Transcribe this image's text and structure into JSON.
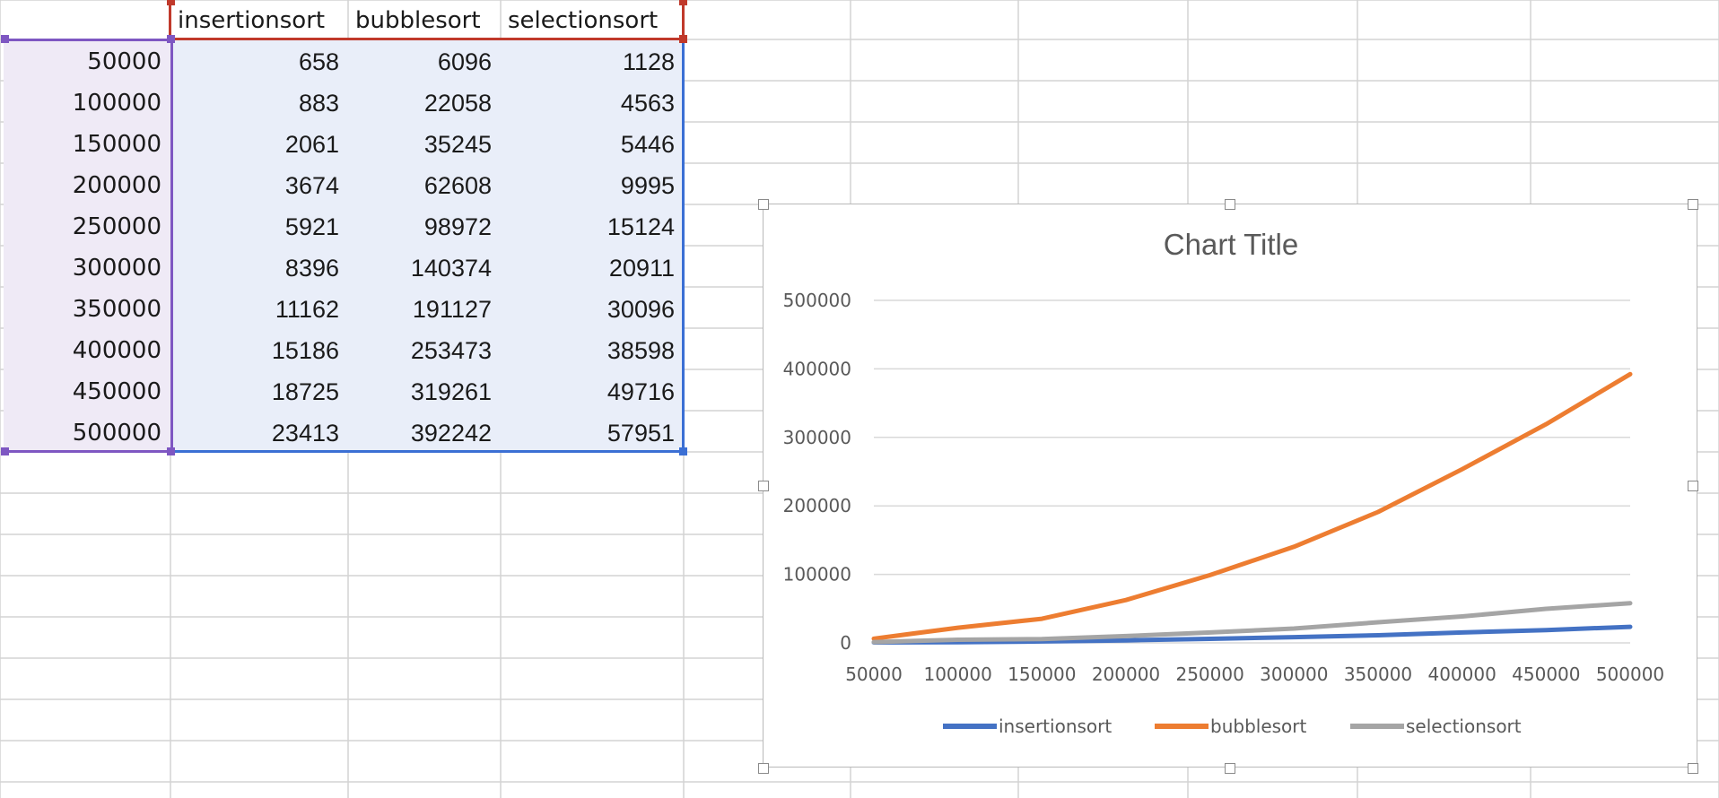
{
  "sheet": {
    "headers": [
      "insertionsort",
      "bubblesort",
      "selectionsort"
    ],
    "rows": [
      {
        "n": "50000",
        "cells": [
          "658",
          "6096",
          "1128"
        ]
      },
      {
        "n": "100000",
        "cells": [
          "883",
          "22058",
          "4563"
        ]
      },
      {
        "n": "150000",
        "cells": [
          "2061",
          "35245",
          "5446"
        ]
      },
      {
        "n": "200000",
        "cells": [
          "3674",
          "62608",
          "9995"
        ]
      },
      {
        "n": "250000",
        "cells": [
          "5921",
          "98972",
          "15124"
        ]
      },
      {
        "n": "300000",
        "cells": [
          "8396",
          "140374",
          "20911"
        ]
      },
      {
        "n": "350000",
        "cells": [
          "11162",
          "191127",
          "30096"
        ]
      },
      {
        "n": "400000",
        "cells": [
          "15186",
          "253473",
          "38598"
        ]
      },
      {
        "n": "450000",
        "cells": [
          "18725",
          "319261",
          "49716"
        ]
      },
      {
        "n": "500000",
        "cells": [
          "23413",
          "392242",
          "57951"
        ]
      }
    ]
  },
  "colors": {
    "gridline": "#d4d4d4",
    "header_selection": "#c0392b",
    "row_selection": "#7e57c2",
    "data_selection": "#3b6fd4",
    "data_fill": "#e9eef9",
    "row_fill": "#efeaf6"
  },
  "chart_data": {
    "type": "line",
    "title": "Chart Title",
    "categories": [
      "50000",
      "100000",
      "150000",
      "200000",
      "250000",
      "300000",
      "350000",
      "400000",
      "450000",
      "500000"
    ],
    "series": [
      {
        "name": "insertionsort",
        "color": "#4472c4",
        "values": [
          658,
          883,
          2061,
          3674,
          5921,
          8396,
          11162,
          15186,
          18725,
          23413
        ]
      },
      {
        "name": "bubblesort",
        "color": "#ed7d31",
        "values": [
          6096,
          22058,
          35245,
          62608,
          98972,
          140374,
          191127,
          253473,
          319261,
          392242
        ]
      },
      {
        "name": "selectionsort",
        "color": "#a5a5a5",
        "values": [
          1128,
          4563,
          5446,
          9995,
          15124,
          20911,
          30096,
          38598,
          49716,
          57951
        ]
      }
    ],
    "yticks": [
      "0",
      "100000",
      "200000",
      "300000",
      "400000",
      "500000"
    ],
    "ylim": [
      0,
      500000
    ],
    "grid": true,
    "legend": "bottom"
  }
}
